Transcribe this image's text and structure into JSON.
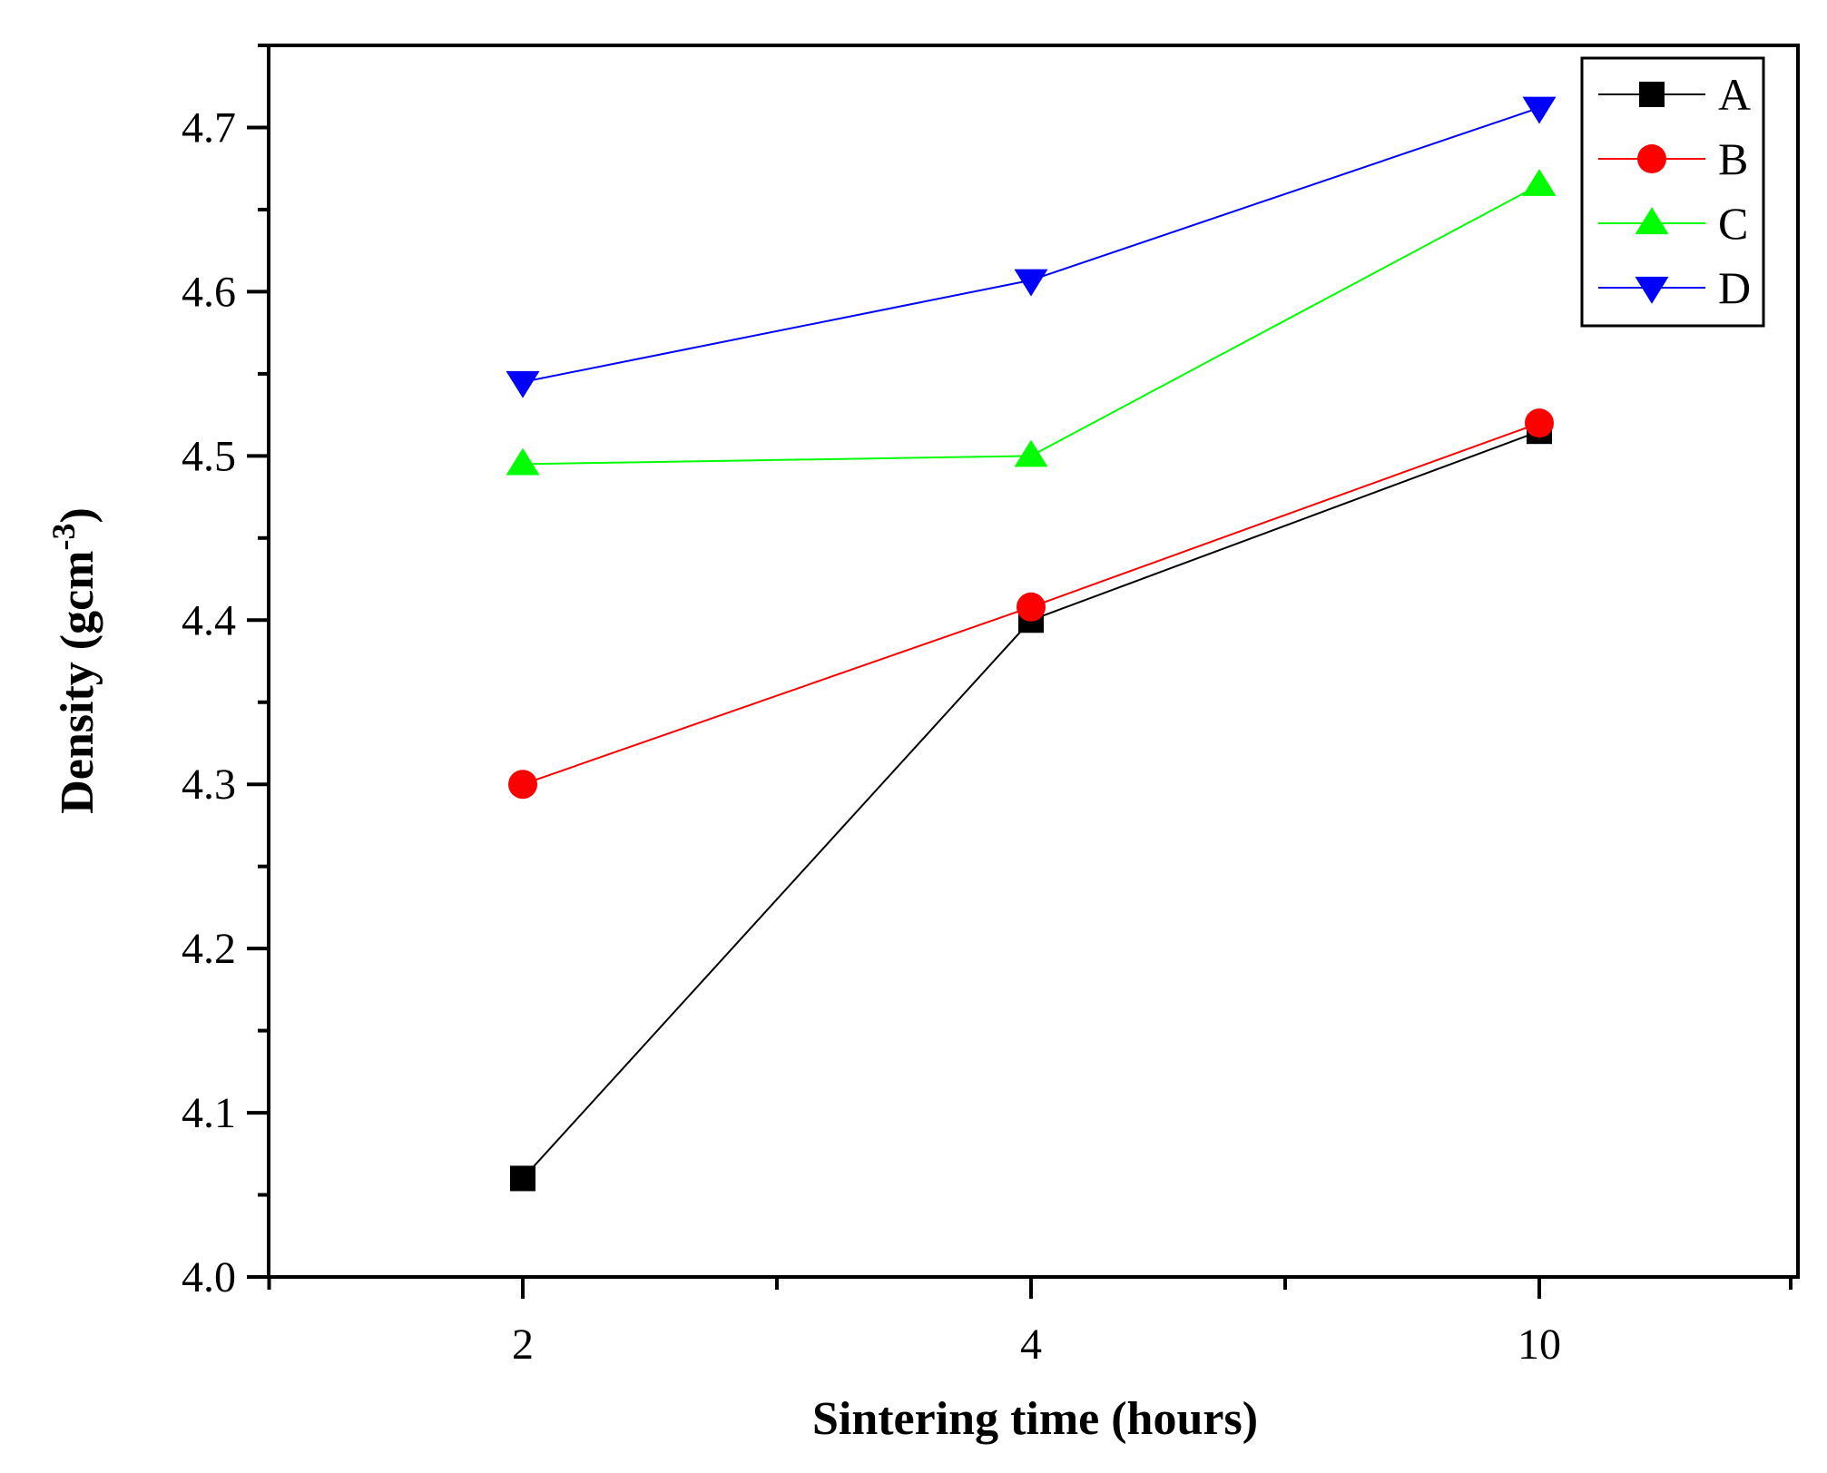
{
  "chart_data": {
    "type": "line",
    "title": "",
    "xlabel": "Sintering time (hours)",
    "ylabel_main": "Density (gcm",
    "ylabel_sup": "-3",
    "ylabel_close": ")",
    "categories": [
      "2",
      "4",
      "10"
    ],
    "ylim": [
      4.0,
      4.75
    ],
    "yticks": [
      "4.0",
      "4.1",
      "4.2",
      "4.3",
      "4.4",
      "4.5",
      "4.6",
      "4.7"
    ],
    "ytick_values": [
      4.0,
      4.1,
      4.2,
      4.3,
      4.4,
      4.5,
      4.6,
      4.7
    ],
    "legend_position": "top-right",
    "series": [
      {
        "name": "A",
        "values": [
          4.06,
          4.4,
          4.515
        ],
        "color": "#000000",
        "marker": "square"
      },
      {
        "name": "B",
        "values": [
          4.3,
          4.408,
          4.52
        ],
        "color": "#ff0000",
        "marker": "circle"
      },
      {
        "name": "C",
        "values": [
          4.495,
          4.5,
          4.665
        ],
        "color": "#00ff00",
        "marker": "triangle-up"
      },
      {
        "name": "D",
        "values": [
          4.545,
          4.607,
          4.712
        ],
        "color": "#0000ff",
        "marker": "triangle-down"
      }
    ]
  }
}
